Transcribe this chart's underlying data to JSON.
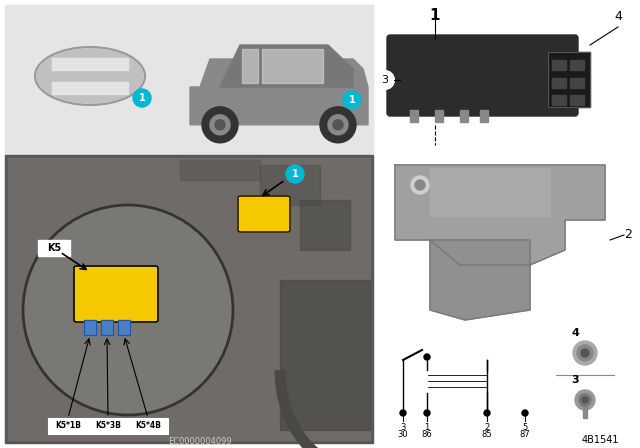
{
  "bg_color": "#ffffff",
  "light_gray_panel": "#e5e5e5",
  "medium_gray": "#c8c8c8",
  "dark_panel": "#5a5856",
  "engine_bg": "#6e6b68",
  "zoom_circle_bg": "#7a7875",
  "yellow_relay": "#f5c800",
  "cyan_marker": "#00b8d4",
  "blue_connector": "#4a7fc1",
  "relay_dark": "#2a2a2a",
  "bracket_gray": "#a0a0a0",
  "bracket_dark": "#787878",
  "white": "#ffffff",
  "black": "#000000",
  "connector_labels": [
    "K5*1B",
    "K5*3B",
    "K5*4B"
  ],
  "terminal_top": [
    "3",
    "1",
    "2",
    "5"
  ],
  "terminal_bot": [
    "30",
    "86",
    "85",
    "87"
  ],
  "diagram_id": "4B1541",
  "ec_number": "EC0000004099",
  "label_1_text": "1",
  "label_2_text": "2",
  "label_3_text": "3",
  "label_4_text": "4",
  "k5_text": "K5"
}
